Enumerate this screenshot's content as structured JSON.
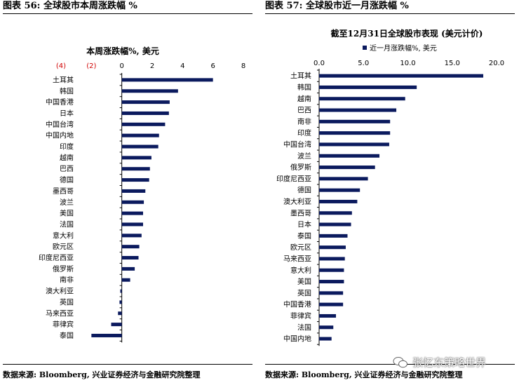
{
  "left_figure": {
    "figure_title": "图表 56:  全球股市本周涨跌幅  %",
    "source": "数据来源:  Bloomberg,  兴业证券经济与金融研究院整理"
  },
  "right_figure": {
    "figure_title": "图表 57:  全球股市近一月涨跌幅  %",
    "source": "数据来源:  Bloomberg,  兴业证券经济与金融研究院整理"
  },
  "watermark": {
    "text": "张忆东策略世界"
  },
  "colors": {
    "bar": "#0b1a5e",
    "negative_tick": "#d00000",
    "axis": "#000000"
  },
  "chart_data": [
    {
      "type": "bar",
      "orientation": "horizontal",
      "title": "本周涨跌幅%, 美元",
      "xlim": [
        -4,
        8
      ],
      "xticks": [
        -4,
        -2,
        0,
        2,
        4,
        6,
        8
      ],
      "xtick_labels": [
        "(4)",
        "(2)",
        "0",
        "2",
        "4",
        "6",
        "8"
      ],
      "axis_position": "top",
      "categories": [
        "土耳其",
        "韩国",
        "中国香港",
        "日本",
        "中国台湾",
        "中国内地",
        "印度",
        "越南",
        "巴西",
        "德国",
        "墨西哥",
        "波兰",
        "美国",
        "法国",
        "意大利",
        "欧元区",
        "印度尼西亚",
        "俄罗斯",
        "南非",
        "澳大利亚",
        "英国",
        "马来西亚",
        "菲律宾",
        "泰国"
      ],
      "values": [
        6.0,
        3.7,
        3.15,
        3.1,
        2.85,
        2.45,
        2.4,
        1.95,
        1.85,
        1.8,
        1.55,
        1.45,
        1.4,
        1.4,
        1.3,
        1.15,
        1.1,
        0.85,
        0.55,
        -0.1,
        -0.15,
        -0.25,
        -0.7,
        -2.0
      ]
    },
    {
      "type": "bar",
      "orientation": "horizontal",
      "title": "截至12月31日全球股市表现 (美元计价)",
      "legend": "近一月涨跌幅%, 美元",
      "legend_position": "top",
      "xlim": [
        0,
        20
      ],
      "xticks": [
        0,
        5,
        10,
        15,
        20
      ],
      "xtick_labels": [
        "0.0",
        "5.0",
        "10.0",
        "15.0",
        "20.0"
      ],
      "axis_position": "top",
      "categories": [
        "土耳其",
        "韩国",
        "越南",
        "巴西",
        "南非",
        "印度",
        "中国台湾",
        "波兰",
        "俄罗斯",
        "印度尼西亚",
        "德国",
        "澳大利亚",
        "墨西哥",
        "日本",
        "泰国",
        "欧元区",
        "马来西亚",
        "意大利",
        "美国",
        "英国",
        "中国香港",
        "菲律宾",
        "法国",
        "中国内地"
      ],
      "values": [
        18.5,
        11.0,
        9.7,
        8.7,
        8.0,
        8.0,
        7.9,
        6.8,
        6.3,
        5.5,
        4.6,
        4.3,
        3.7,
        3.6,
        3.2,
        3.0,
        2.9,
        2.8,
        2.8,
        2.7,
        2.7,
        1.9,
        1.6,
        1.4
      ]
    }
  ]
}
